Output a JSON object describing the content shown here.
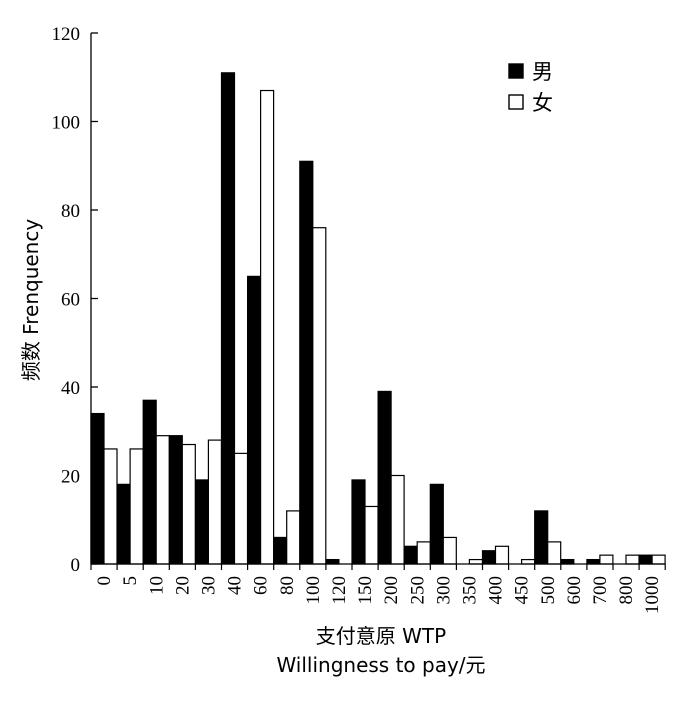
{
  "chart_data": {
    "type": "bar",
    "ylabel": "频数 Frenquency",
    "xlabel_line1": "支付意原 WTP",
    "xlabel_line2": "Willingness to pay/元",
    "ylim": [
      0,
      120
    ],
    "yticks": [
      "0",
      "20",
      "40",
      "60",
      "80",
      "100",
      "120"
    ],
    "categories": [
      "0",
      "5",
      "10",
      "20",
      "30",
      "40",
      "60",
      "80",
      "100",
      "120",
      "150",
      "200",
      "250",
      "300",
      "350",
      "400",
      "450",
      "500",
      "600",
      "700",
      "800",
      "1000"
    ],
    "legend_position": "top-right",
    "series": [
      {
        "name": "男",
        "color": "#000000",
        "values": [
          34,
          18,
          37,
          29,
          19,
          111,
          65,
          6,
          91,
          1,
          19,
          39,
          4,
          18,
          0,
          3,
          0,
          12,
          1,
          1,
          0,
          2
        ]
      },
      {
        "name": "女",
        "color": "#ffffff",
        "values": [
          26,
          26,
          29,
          27,
          28,
          25,
          107,
          12,
          76,
          0,
          13,
          20,
          5,
          6,
          1,
          4,
          1,
          5,
          0,
          2,
          2,
          2
        ]
      }
    ]
  }
}
